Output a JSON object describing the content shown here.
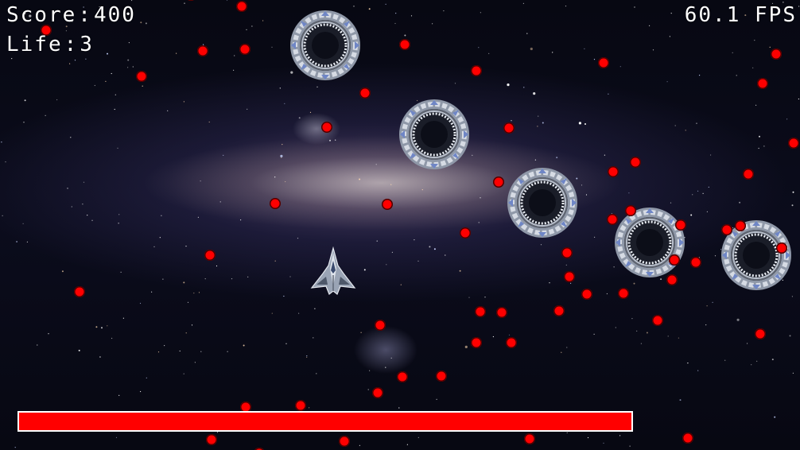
{
  "hud": {
    "score_label": "Score",
    "score_value": "400",
    "life_label": "Life",
    "life_value": "3",
    "fps_value": "60.1",
    "fps_unit": "FPS"
  },
  "health_bar": {
    "fill_fraction": 1.0,
    "color": "#ff0000",
    "border_color": "#ffffff"
  },
  "bullet_color": "#ff0000",
  "player": {
    "sprite": "starfighter-icon"
  },
  "enemy": {
    "sprite": "ring-portal-icon"
  }
}
